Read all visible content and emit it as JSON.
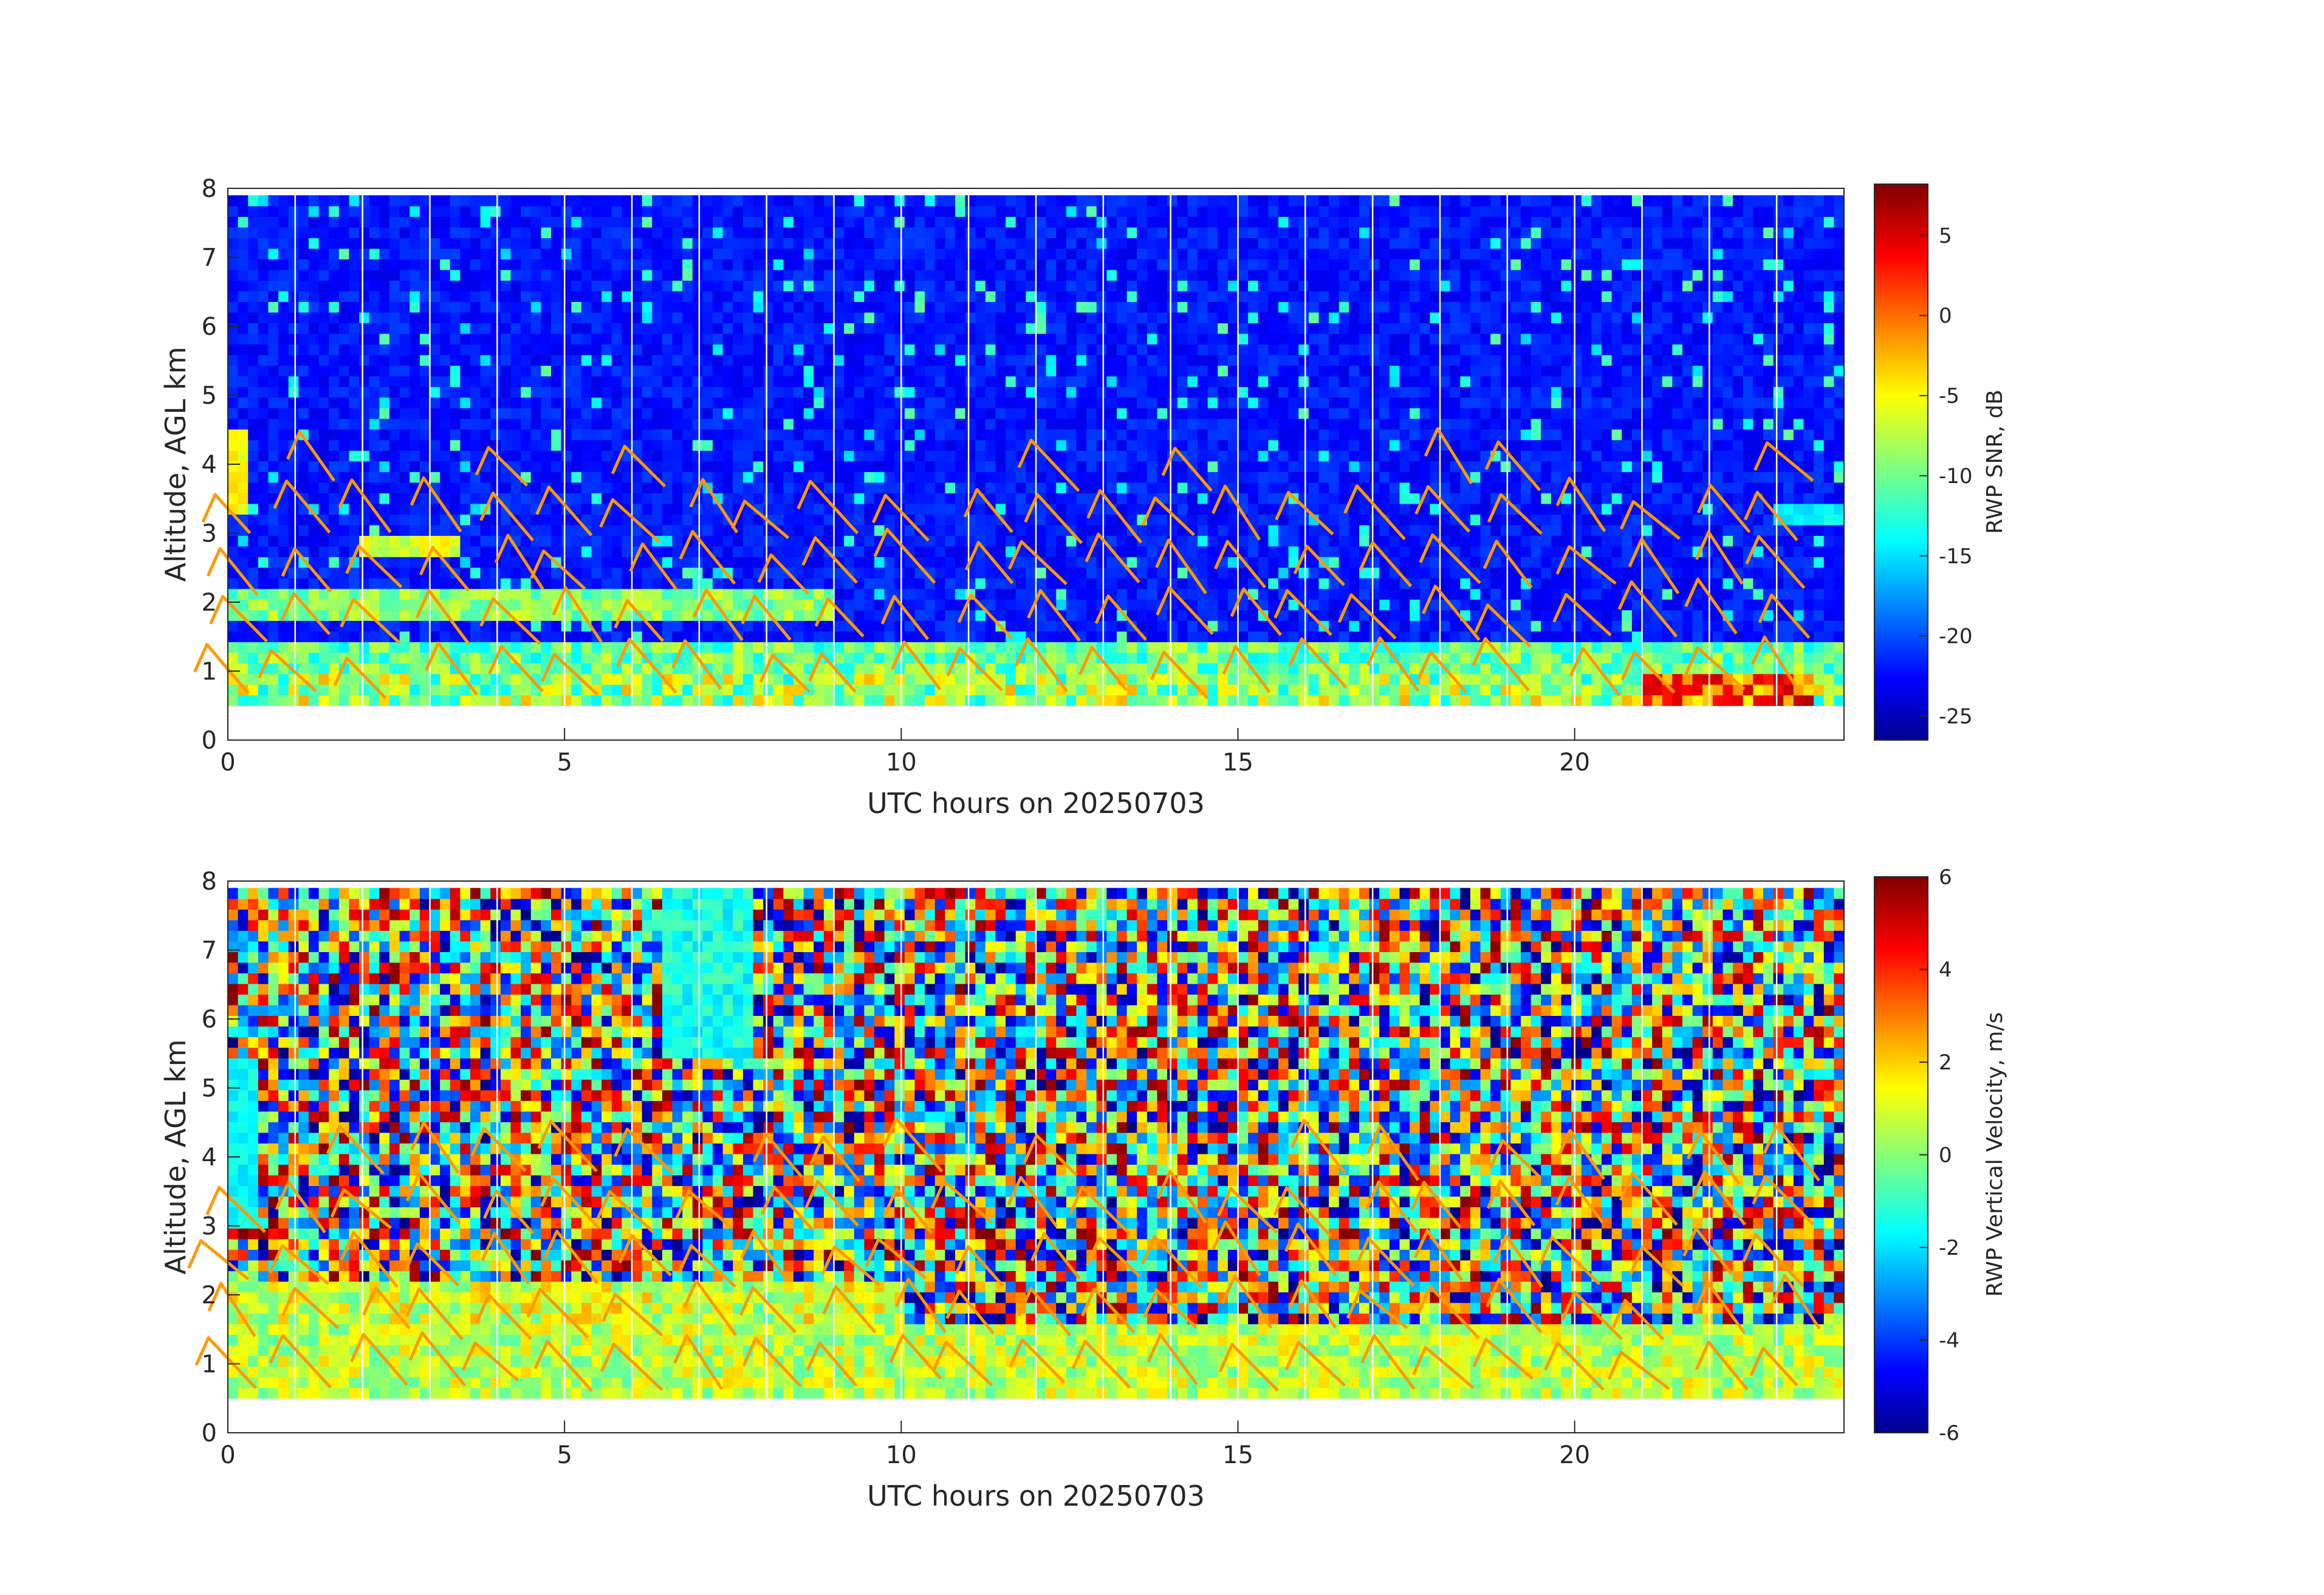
{
  "chart_data": [
    {
      "type": "heatmap",
      "name": "snr",
      "title": "",
      "xlabel": "UTC hours on 20250703",
      "ylabel": "Altitude, AGL km",
      "xlim": [
        0,
        24
      ],
      "ylim": [
        0,
        8
      ],
      "data_ylim": [
        0.5,
        7.9
      ],
      "x_ticks": [
        0,
        5,
        10,
        15,
        20
      ],
      "y_ticks": [
        0,
        1,
        2,
        3,
        4,
        5,
        6,
        7,
        8
      ],
      "colorbar": {
        "label": "RWP SNR, dB",
        "range": [
          -26.5,
          8.2
        ],
        "ticks": [
          5,
          0,
          -5,
          -10,
          -15,
          -20,
          -25
        ],
        "colormap": "jet"
      },
      "profile_separators_hours": [
        1,
        2,
        3,
        4,
        5,
        6,
        7,
        8,
        9,
        10,
        11,
        12,
        13,
        14,
        15,
        16,
        17,
        18,
        19,
        20,
        21,
        22,
        23
      ],
      "overlay": "wind barbs (orange)",
      "overlay_color": "#ff9900",
      "features": [
        {
          "description": "low-level enhanced SNR layer",
          "alt_km": [
            0.5,
            1.5
          ],
          "snr_db": -10
        },
        {
          "description": "elevated layer near 2 km early in day",
          "hours": [
            0,
            9
          ],
          "alt_km": [
            1.8,
            2.2
          ],
          "snr_db": -8
        },
        {
          "description": "strong echo late in day",
          "hours": [
            21,
            23.5
          ],
          "alt_km": [
            0.5,
            1.0
          ],
          "snr_db": 5
        }
      ]
    },
    {
      "type": "heatmap",
      "name": "vertical_velocity",
      "title": "",
      "xlabel": "UTC hours on 20250703",
      "ylabel": "Altitude, AGL km",
      "xlim": [
        0,
        24
      ],
      "ylim": [
        0,
        8
      ],
      "data_ylim": [
        0.5,
        7.9
      ],
      "x_ticks": [
        0,
        5,
        10,
        15,
        20
      ],
      "y_ticks": [
        0,
        1,
        2,
        3,
        4,
        5,
        6,
        7,
        8
      ],
      "colorbar": {
        "label": "RWP Vertical Velocity, m/s",
        "range": [
          -6,
          6
        ],
        "ticks": [
          6,
          4,
          2,
          0,
          -2,
          -4,
          -6
        ],
        "colormap": "jet"
      },
      "profile_separators_hours": [
        1,
        2,
        3,
        4,
        5,
        6,
        7,
        8,
        9,
        10,
        11,
        12,
        13,
        14,
        15,
        16,
        17,
        18,
        19,
        20,
        21,
        22,
        23
      ],
      "overlay": "wind barbs (orange)",
      "overlay_color": "#ff9900",
      "features": [
        {
          "description": "near-zero velocity low layer",
          "alt_km": [
            0.5,
            1.6
          ],
          "velocity_ms": 0.5
        },
        {
          "description": "noisy upper region",
          "alt_km": [
            2.0,
            7.9
          ],
          "velocity_ms": "random -6 to 6"
        }
      ]
    }
  ]
}
